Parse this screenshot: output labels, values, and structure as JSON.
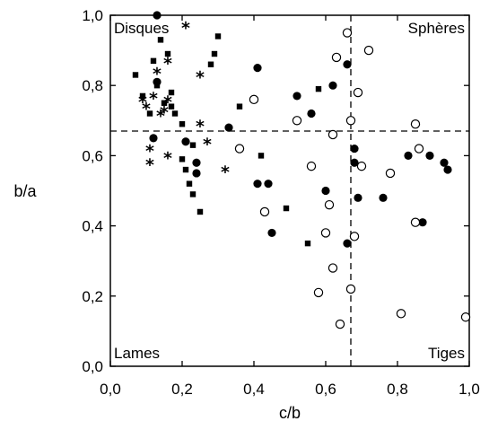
{
  "chart_data": {
    "type": "scatter",
    "title": "",
    "xlabel": "c/b",
    "ylabel": "b/a",
    "xlim": [
      0.0,
      1.0
    ],
    "ylim": [
      0.0,
      1.0
    ],
    "xticks": [
      "0,0",
      "0,2",
      "0,4",
      "0,6",
      "0,8",
      "1,0"
    ],
    "yticks": [
      "0,0",
      "0,2",
      "0,4",
      "0,6",
      "0,8",
      "1,0"
    ],
    "grid": false,
    "legend": "none",
    "reference_lines": {
      "vertical_x": 0.67,
      "horizontal_y": 0.67,
      "style": "dashed"
    },
    "quadrant_labels": {
      "top_left": "Disques",
      "top_right": "Sphères",
      "bottom_left": "Lames",
      "bottom_right": "Tiges"
    },
    "series": [
      {
        "marker": "filled-square",
        "color": "#000000",
        "points": [
          [
            0.07,
            0.83
          ],
          [
            0.09,
            0.77
          ],
          [
            0.11,
            0.72
          ],
          [
            0.12,
            0.87
          ],
          [
            0.13,
            0.8
          ],
          [
            0.14,
            0.93
          ],
          [
            0.15,
            0.75
          ],
          [
            0.16,
            0.89
          ],
          [
            0.17,
            0.74
          ],
          [
            0.17,
            0.78
          ],
          [
            0.18,
            0.72
          ],
          [
            0.2,
            0.69
          ],
          [
            0.2,
            0.59
          ],
          [
            0.21,
            0.56
          ],
          [
            0.22,
            0.52
          ],
          [
            0.23,
            0.63
          ],
          [
            0.23,
            0.49
          ],
          [
            0.25,
            0.44
          ],
          [
            0.28,
            0.86
          ],
          [
            0.29,
            0.89
          ],
          [
            0.3,
            0.94
          ],
          [
            0.36,
            0.74
          ],
          [
            0.42,
            0.6
          ],
          [
            0.49,
            0.45
          ],
          [
            0.55,
            0.35
          ],
          [
            0.58,
            0.79
          ]
        ]
      },
      {
        "marker": "filled-circle",
        "color": "#000000",
        "points": [
          [
            0.13,
            1.0
          ],
          [
            0.13,
            0.81
          ],
          [
            0.12,
            0.65
          ],
          [
            0.21,
            0.64
          ],
          [
            0.24,
            0.58
          ],
          [
            0.24,
            0.55
          ],
          [
            0.33,
            0.68
          ],
          [
            0.41,
            0.85
          ],
          [
            0.41,
            0.52
          ],
          [
            0.44,
            0.52
          ],
          [
            0.45,
            0.38
          ],
          [
            0.52,
            0.77
          ],
          [
            0.56,
            0.72
          ],
          [
            0.6,
            0.5
          ],
          [
            0.62,
            0.8
          ],
          [
            0.66,
            0.86
          ],
          [
            0.66,
            0.35
          ],
          [
            0.68,
            0.62
          ],
          [
            0.68,
            0.58
          ],
          [
            0.69,
            0.48
          ],
          [
            0.76,
            0.48
          ],
          [
            0.83,
            0.6
          ],
          [
            0.86,
            0.62
          ],
          [
            0.87,
            0.41
          ],
          [
            0.89,
            0.6
          ],
          [
            0.93,
            0.58
          ],
          [
            0.94,
            0.56
          ]
        ]
      },
      {
        "marker": "open-circle",
        "color": "#000000",
        "points": [
          [
            0.36,
            0.62
          ],
          [
            0.4,
            0.76
          ],
          [
            0.43,
            0.44
          ],
          [
            0.52,
            0.7
          ],
          [
            0.56,
            0.57
          ],
          [
            0.58,
            0.21
          ],
          [
            0.6,
            0.38
          ],
          [
            0.61,
            0.46
          ],
          [
            0.62,
            0.28
          ],
          [
            0.62,
            0.66
          ],
          [
            0.63,
            0.88
          ],
          [
            0.64,
            0.12
          ],
          [
            0.66,
            0.95
          ],
          [
            0.67,
            0.22
          ],
          [
            0.67,
            0.7
          ],
          [
            0.68,
            0.37
          ],
          [
            0.69,
            0.78
          ],
          [
            0.7,
            0.57
          ],
          [
            0.72,
            0.9
          ],
          [
            0.78,
            0.55
          ],
          [
            0.81,
            0.15
          ],
          [
            0.85,
            0.41
          ],
          [
            0.85,
            0.69
          ],
          [
            0.86,
            0.62
          ],
          [
            0.99,
            0.14
          ]
        ]
      },
      {
        "marker": "star",
        "color": "#000000",
        "points": [
          [
            0.09,
            0.76
          ],
          [
            0.1,
            0.74
          ],
          [
            0.11,
            0.62
          ],
          [
            0.11,
            0.58
          ],
          [
            0.12,
            0.77
          ],
          [
            0.13,
            0.84
          ],
          [
            0.14,
            0.72
          ],
          [
            0.15,
            0.73
          ],
          [
            0.16,
            0.87
          ],
          [
            0.16,
            0.76
          ],
          [
            0.16,
            0.6
          ],
          [
            0.21,
            0.97
          ],
          [
            0.25,
            0.83
          ],
          [
            0.25,
            0.69
          ],
          [
            0.27,
            0.64
          ],
          [
            0.32,
            0.56
          ]
        ]
      }
    ]
  }
}
